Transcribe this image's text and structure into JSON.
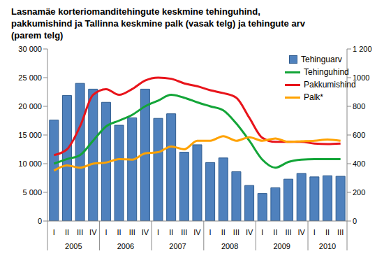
{
  "chart_data": {
    "type": "bar_line",
    "title": "Lasnamäe korteriomanditehingute keskmine tehinguhind, pakkumishind ja Tallinna keskmine palk (vasak telg) ja tehingute arv (parem telg)",
    "categories": [
      "I",
      "II",
      "III",
      "IV",
      "I",
      "II",
      "III",
      "IV",
      "I",
      "II",
      "III",
      "IV",
      "I",
      "II",
      "III",
      "IV",
      "I",
      "II",
      "III",
      "IV",
      "I",
      "II",
      "III"
    ],
    "x_groups": [
      {
        "label": "2005",
        "size": 4
      },
      {
        "label": "2006",
        "size": 4
      },
      {
        "label": "2007",
        "size": 4
      },
      {
        "label": "2008",
        "size": 4
      },
      {
        "label": "2009",
        "size": 4
      },
      {
        "label": "2010",
        "size": 3
      }
    ],
    "series": [
      {
        "name": "Tehinguarv",
        "type": "bar",
        "axis": "y2",
        "color": "#4F81BD",
        "values": [
          704,
          876,
          960,
          920,
          828,
          668,
          720,
          920,
          716,
          748,
          480,
          532,
          408,
          440,
          344,
          248,
          192,
          232,
          292,
          332,
          308,
          316,
          312
        ]
      },
      {
        "name": "Tehinguhind",
        "type": "line",
        "line_style": "smooth",
        "color": "#13A538",
        "values": [
          10000,
          10800,
          11500,
          14000,
          16500,
          17500,
          18500,
          20000,
          21000,
          22000,
          21500,
          20700,
          20000,
          19300,
          17000,
          14000,
          10700,
          9300,
          10300,
          10700,
          10800,
          10800,
          10800
        ]
      },
      {
        "name": "Pakkumishind",
        "type": "line",
        "line_style": "smooth",
        "color": "#E8141B",
        "values": [
          11500,
          12500,
          16500,
          22000,
          23000,
          22000,
          23000,
          24500,
          25000,
          24800,
          24000,
          23500,
          22800,
          22300,
          21500,
          18000,
          14500,
          13800,
          13800,
          13800,
          13500,
          13400,
          13500
        ]
      },
      {
        "name": "Palk*",
        "type": "line",
        "line_style": "smooth",
        "color": "#FFA200",
        "values": [
          8800,
          9700,
          9300,
          10000,
          10200,
          10800,
          10700,
          11800,
          12000,
          13000,
          12500,
          14000,
          14000,
          14800,
          14000,
          14600,
          14000,
          14400,
          13800,
          13900,
          14000,
          14200,
          14000
        ]
      }
    ],
    "ylim": [
      0,
      30000
    ],
    "yticks": [
      0,
      {
        "value": 5000,
        "label": "5 000"
      },
      {
        "value": 10000,
        "label": "10 000"
      },
      {
        "value": 15000,
        "label": "15 000"
      },
      {
        "value": 20000,
        "label": "20 000"
      },
      {
        "value": 25000,
        "label": "25 000"
      },
      {
        "value": 30000,
        "label": "30 000"
      }
    ],
    "y2lim": [
      0,
      1200
    ],
    "y2ticks": [
      0,
      200,
      400,
      600,
      800,
      1000,
      {
        "value": 1200,
        "label": "1 200"
      }
    ],
    "grid": false,
    "legend": "right"
  }
}
